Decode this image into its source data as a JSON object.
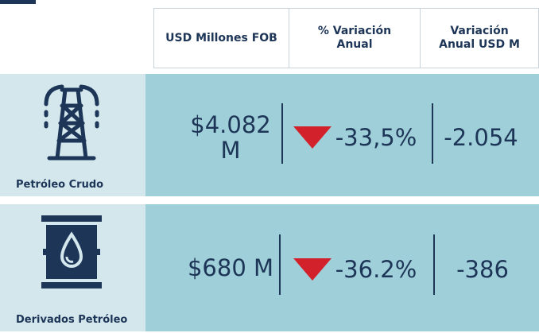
{
  "table": {
    "headers": [
      "USD Millones FOB",
      "% Variación Anual",
      "Variación Anual USD M"
    ],
    "rows": [
      {
        "label": "Petróleo Crudo",
        "cells": [
          "$4.082 M",
          "-33,5%",
          "-2.054"
        ]
      },
      {
        "label": "Derivados Petróleo",
        "cells": [
          "$680 M",
          "-36.2%",
          "-386"
        ]
      }
    ]
  }
}
